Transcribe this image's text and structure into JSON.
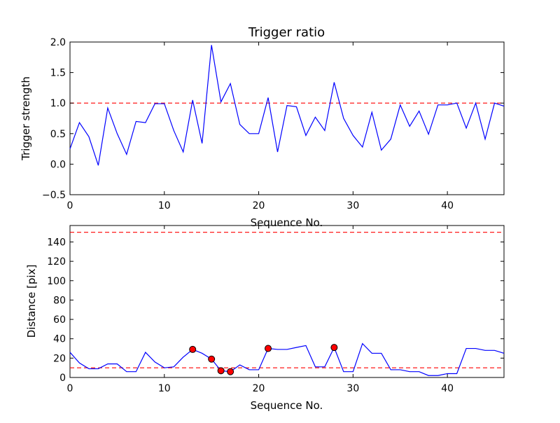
{
  "chart_data": [
    {
      "type": "line",
      "title": "Trigger ratio",
      "xlabel": "Sequence No.",
      "ylabel": "Trigger strength",
      "xlim": [
        0,
        46
      ],
      "ylim": [
        -0.5,
        2.0
      ],
      "xticks": [
        0,
        10,
        20,
        30,
        40
      ],
      "yticks": [
        -0.5,
        0.0,
        0.5,
        1.0,
        1.5,
        2.0
      ],
      "ytick_labels": [
        "−0.5",
        "0.0",
        "0.5",
        "1.0",
        "1.5",
        "2.0"
      ],
      "grid": false,
      "colors": {
        "line": "#0000ff",
        "threshold": "#ff0000"
      },
      "thresholds": [
        1.0
      ],
      "series": [
        {
          "name": "trigger strength",
          "x": [
            0,
            1,
            2,
            3,
            4,
            5,
            6,
            7,
            8,
            9,
            10,
            11,
            12,
            13,
            14,
            15,
            16,
            17,
            18,
            19,
            20,
            21,
            22,
            23,
            24,
            25,
            26,
            27,
            28,
            29,
            30,
            31,
            32,
            33,
            34,
            35,
            36,
            37,
            38,
            39,
            40,
            41,
            42,
            43,
            44,
            45,
            46
          ],
          "values": [
            0.25,
            0.68,
            0.45,
            -0.02,
            0.92,
            0.5,
            0.16,
            0.7,
            0.68,
            0.99,
            0.99,
            0.55,
            0.2,
            1.05,
            0.34,
            1.95,
            1.02,
            1.32,
            0.65,
            0.5,
            0.5,
            1.09,
            0.2,
            0.96,
            0.94,
            0.47,
            0.77,
            0.55,
            1.34,
            0.75,
            0.47,
            0.28,
            0.85,
            0.23,
            0.41,
            0.97,
            0.62,
            0.87,
            0.49,
            0.97,
            0.97,
            1.0,
            0.59,
            1.0,
            0.41,
            1.0,
            0.95
          ]
        }
      ]
    },
    {
      "type": "line",
      "title": "",
      "xlabel": "Sequence No.",
      "ylabel": "Distance [pix]",
      "xlim": [
        0,
        46
      ],
      "ylim": [
        0,
        157
      ],
      "xticks": [
        0,
        10,
        20,
        30,
        40
      ],
      "yticks": [
        0,
        20,
        40,
        60,
        80,
        100,
        120,
        140
      ],
      "ytick_labels": [
        "0",
        "20",
        "40",
        "60",
        "80",
        "100",
        "120",
        "140"
      ],
      "grid": false,
      "colors": {
        "line": "#0000ff",
        "threshold": "#ff0000",
        "marker": "#ff0000"
      },
      "thresholds": [
        150,
        10
      ],
      "series": [
        {
          "name": "distance",
          "x": [
            0,
            1,
            2,
            3,
            4,
            5,
            6,
            7,
            8,
            9,
            10,
            11,
            12,
            13,
            14,
            15,
            16,
            17,
            18,
            19,
            20,
            21,
            22,
            23,
            24,
            25,
            26,
            27,
            28,
            29,
            30,
            31,
            32,
            33,
            34,
            35,
            36,
            37,
            38,
            39,
            40,
            41,
            42,
            43,
            44,
            45,
            46
          ],
          "values": [
            26,
            15,
            9,
            9,
            14,
            14,
            6,
            6,
            26,
            16,
            10,
            11,
            21,
            29,
            25,
            19,
            7,
            6,
            13,
            8,
            8,
            30,
            29,
            29,
            31,
            33,
            11,
            11,
            31,
            6,
            6,
            35,
            25,
            25,
            8,
            8,
            6,
            6,
            2,
            2,
            4,
            4,
            30,
            30,
            28,
            28,
            25
          ]
        }
      ],
      "highlighted_points": {
        "x": [
          13,
          15,
          16,
          17,
          21,
          28
        ],
        "values": [
          29,
          19,
          7,
          6,
          30,
          31
        ]
      }
    }
  ]
}
